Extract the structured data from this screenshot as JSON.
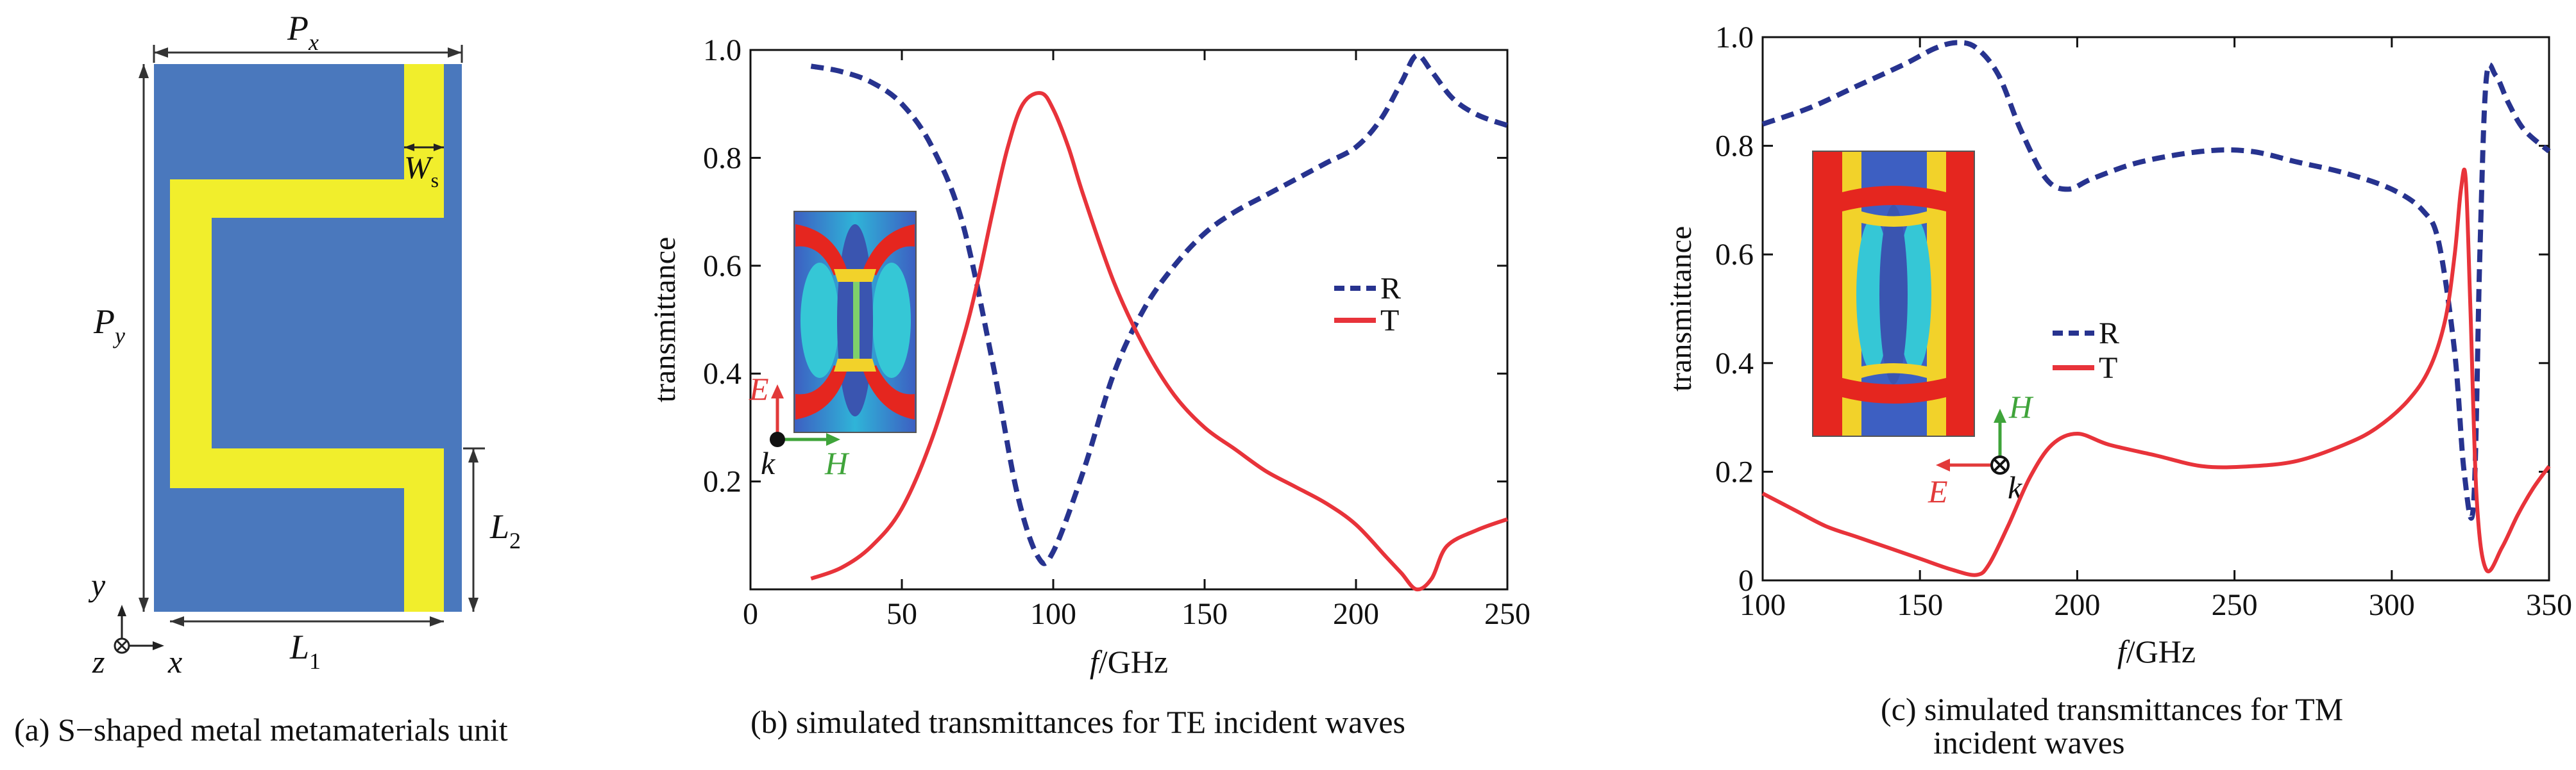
{
  "colors": {
    "r_line": "#27338f",
    "t_line": "#e8333a",
    "unit_bg": "#4a78bd",
    "metal": "#f1ee2c",
    "e_arrow": "#e23a3a",
    "h_arrow": "#3fa43a"
  },
  "panel_a": {
    "caption": "(a) S−shaped metal metamaterials unit",
    "labels": {
      "px": "P",
      "px_sub": "x",
      "py": "P",
      "py_sub": "y",
      "ws": "W",
      "ws_sub": "s",
      "l1": "L",
      "l1_sub": "1",
      "l2": "L",
      "l2_sub": "2",
      "axis_y": "y",
      "axis_x": "x",
      "axis_z": "z"
    }
  },
  "chart_data": [
    {
      "type": "line",
      "caption": "(b) simulated transmittances for TE incident waves",
      "xlabel_italic": "f",
      "xlabel_unit": "/GHz",
      "ylabel": "transmittance",
      "xlim": [
        0,
        250
      ],
      "ylim": [
        0,
        1.0
      ],
      "xticks": [
        0,
        50,
        100,
        150,
        200,
        250
      ],
      "yticks": [
        0.2,
        0.4,
        0.6,
        0.8,
        1.0
      ],
      "ytick_labels": [
        "0.2",
        "0.4",
        "0.6",
        "0.8",
        "1.0"
      ],
      "legend": {
        "position": "center-right",
        "entries": [
          "R",
          "T"
        ]
      },
      "inset": {
        "e_label": "E",
        "h_label": "H",
        "k_label": "k"
      },
      "series": [
        {
          "name": "R",
          "style": "dashed",
          "x": [
            20,
            30,
            40,
            50,
            60,
            70,
            80,
            88,
            95,
            100,
            110,
            120,
            130,
            140,
            150,
            160,
            170,
            180,
            190,
            200,
            208,
            215,
            220,
            225,
            232,
            240,
            250
          ],
          "y": [
            0.97,
            0.96,
            0.94,
            0.9,
            0.82,
            0.68,
            0.42,
            0.18,
            0.06,
            0.07,
            0.22,
            0.4,
            0.52,
            0.6,
            0.66,
            0.7,
            0.73,
            0.76,
            0.79,
            0.82,
            0.87,
            0.94,
            0.99,
            0.96,
            0.91,
            0.88,
            0.86
          ]
        },
        {
          "name": "T",
          "style": "solid",
          "x": [
            20,
            30,
            40,
            50,
            60,
            70,
            75,
            80,
            85,
            90,
            96,
            100,
            105,
            110,
            120,
            130,
            140,
            150,
            160,
            170,
            180,
            190,
            200,
            210,
            215,
            220,
            225,
            230,
            240,
            250
          ],
          "y": [
            0.02,
            0.04,
            0.08,
            0.15,
            0.28,
            0.46,
            0.57,
            0.7,
            0.82,
            0.9,
            0.92,
            0.89,
            0.82,
            0.73,
            0.57,
            0.45,
            0.36,
            0.3,
            0.26,
            0.22,
            0.19,
            0.16,
            0.12,
            0.06,
            0.03,
            0.0,
            0.02,
            0.08,
            0.11,
            0.13
          ]
        }
      ]
    },
    {
      "type": "line",
      "caption_line1": "(c) simulated transmittances for TM",
      "caption_line2": "incident waves",
      "xlabel_italic": "f",
      "xlabel_unit": "/GHz",
      "ylabel": "transmittance",
      "xlim": [
        100,
        350
      ],
      "ylim": [
        0,
        1.0
      ],
      "xticks": [
        100,
        150,
        200,
        250,
        300,
        350
      ],
      "yticks": [
        0,
        0.2,
        0.4,
        0.6,
        0.8,
        1.0
      ],
      "ytick_labels": [
        "0",
        "0.2",
        "0.4",
        "0.6",
        "0.8",
        "1.0"
      ],
      "legend": {
        "position": "center",
        "entries": [
          "R",
          "T"
        ]
      },
      "inset": {
        "e_label": "E",
        "h_label": "H",
        "k_label": "k"
      },
      "series": [
        {
          "name": "R",
          "style": "dashed",
          "x": [
            100,
            115,
            130,
            145,
            155,
            162,
            168,
            175,
            182,
            190,
            197,
            205,
            220,
            240,
            255,
            270,
            285,
            300,
            310,
            315,
            320,
            323,
            326,
            328,
            330,
            333,
            337,
            342,
            350
          ],
          "y": [
            0.84,
            0.87,
            0.91,
            0.95,
            0.98,
            0.99,
            0.98,
            0.93,
            0.83,
            0.74,
            0.72,
            0.74,
            0.77,
            0.79,
            0.79,
            0.77,
            0.75,
            0.72,
            0.68,
            0.62,
            0.42,
            0.2,
            0.14,
            0.6,
            0.92,
            0.93,
            0.88,
            0.83,
            0.79
          ]
        },
        {
          "name": "T",
          "style": "solid",
          "x": [
            100,
            110,
            120,
            130,
            140,
            150,
            160,
            168,
            172,
            178,
            185,
            192,
            200,
            210,
            225,
            240,
            255,
            270,
            285,
            295,
            305,
            312,
            317,
            320,
            322,
            323.5,
            325,
            327,
            330,
            335,
            340,
            345,
            350
          ],
          "y": [
            0.16,
            0.13,
            0.1,
            0.08,
            0.06,
            0.04,
            0.02,
            0.01,
            0.03,
            0.1,
            0.19,
            0.25,
            0.27,
            0.25,
            0.23,
            0.21,
            0.21,
            0.22,
            0.25,
            0.28,
            0.33,
            0.39,
            0.48,
            0.6,
            0.72,
            0.74,
            0.5,
            0.15,
            0.02,
            0.06,
            0.12,
            0.17,
            0.21
          ]
        }
      ]
    }
  ]
}
